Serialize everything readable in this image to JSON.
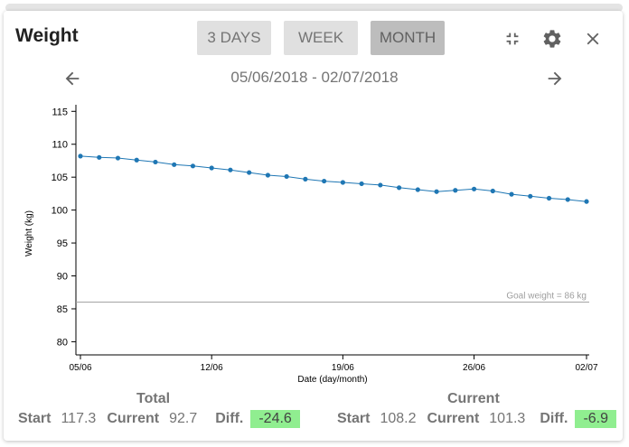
{
  "header": {
    "title": "Weight",
    "ranges": [
      {
        "label": "3 DAYS",
        "active": false
      },
      {
        "label": "WEEK",
        "active": false
      },
      {
        "label": "MONTH",
        "active": true
      }
    ],
    "date_range": "05/06/2018 - 02/07/2018"
  },
  "icons": {
    "collapse": "fullscreen-exit-icon",
    "settings": "gear-icon",
    "close": "close-icon",
    "prev": "arrow-left-icon",
    "next": "arrow-right-icon"
  },
  "colors": {
    "series": "#1f77b4",
    "goal_line": "#9e9e9e",
    "diff_bg": "#90ee90"
  },
  "chart_data": {
    "type": "line",
    "xlabel": "Date (day/month)",
    "ylabel": "Weight (kg)",
    "ylim": [
      78,
      116
    ],
    "yticks": [
      80,
      85,
      90,
      95,
      100,
      105,
      110,
      115
    ],
    "xlim": [
      "05/06",
      "02/07"
    ],
    "xticks": [
      "05/06",
      "12/06",
      "19/06",
      "26/06",
      "02/07"
    ],
    "grid": false,
    "goal": {
      "value": 86,
      "label": "Goal weight = 86 kg"
    },
    "series": [
      {
        "x": [
          "05/06",
          "06/06",
          "07/06",
          "08/06",
          "09/06",
          "10/06",
          "11/06",
          "12/06",
          "13/06",
          "14/06",
          "15/06",
          "16/06",
          "17/06",
          "18/06",
          "19/06",
          "20/06",
          "21/06",
          "22/06",
          "23/06",
          "24/06",
          "25/06",
          "26/06",
          "27/06",
          "28/06",
          "29/06",
          "30/06",
          "01/07",
          "02/07"
        ],
        "y": [
          108.2,
          108.0,
          107.9,
          107.6,
          107.3,
          106.9,
          106.7,
          106.4,
          106.1,
          105.7,
          105.3,
          105.1,
          104.7,
          104.4,
          104.2,
          104.0,
          103.8,
          103.4,
          103.1,
          102.8,
          103.0,
          103.2,
          102.9,
          102.4,
          102.1,
          101.8,
          101.6,
          101.3
        ]
      }
    ]
  },
  "stats": {
    "total": {
      "heading": "Total",
      "start_label": "Start",
      "start": "117.3",
      "current_label": "Current",
      "current": "92.7",
      "diff_label": "Diff.",
      "diff": "-24.6"
    },
    "current": {
      "heading": "Current",
      "start_label": "Start",
      "start": "108.2",
      "current_label": "Current",
      "current": "101.3",
      "diff_label": "Diff.",
      "diff": "-6.9"
    }
  }
}
